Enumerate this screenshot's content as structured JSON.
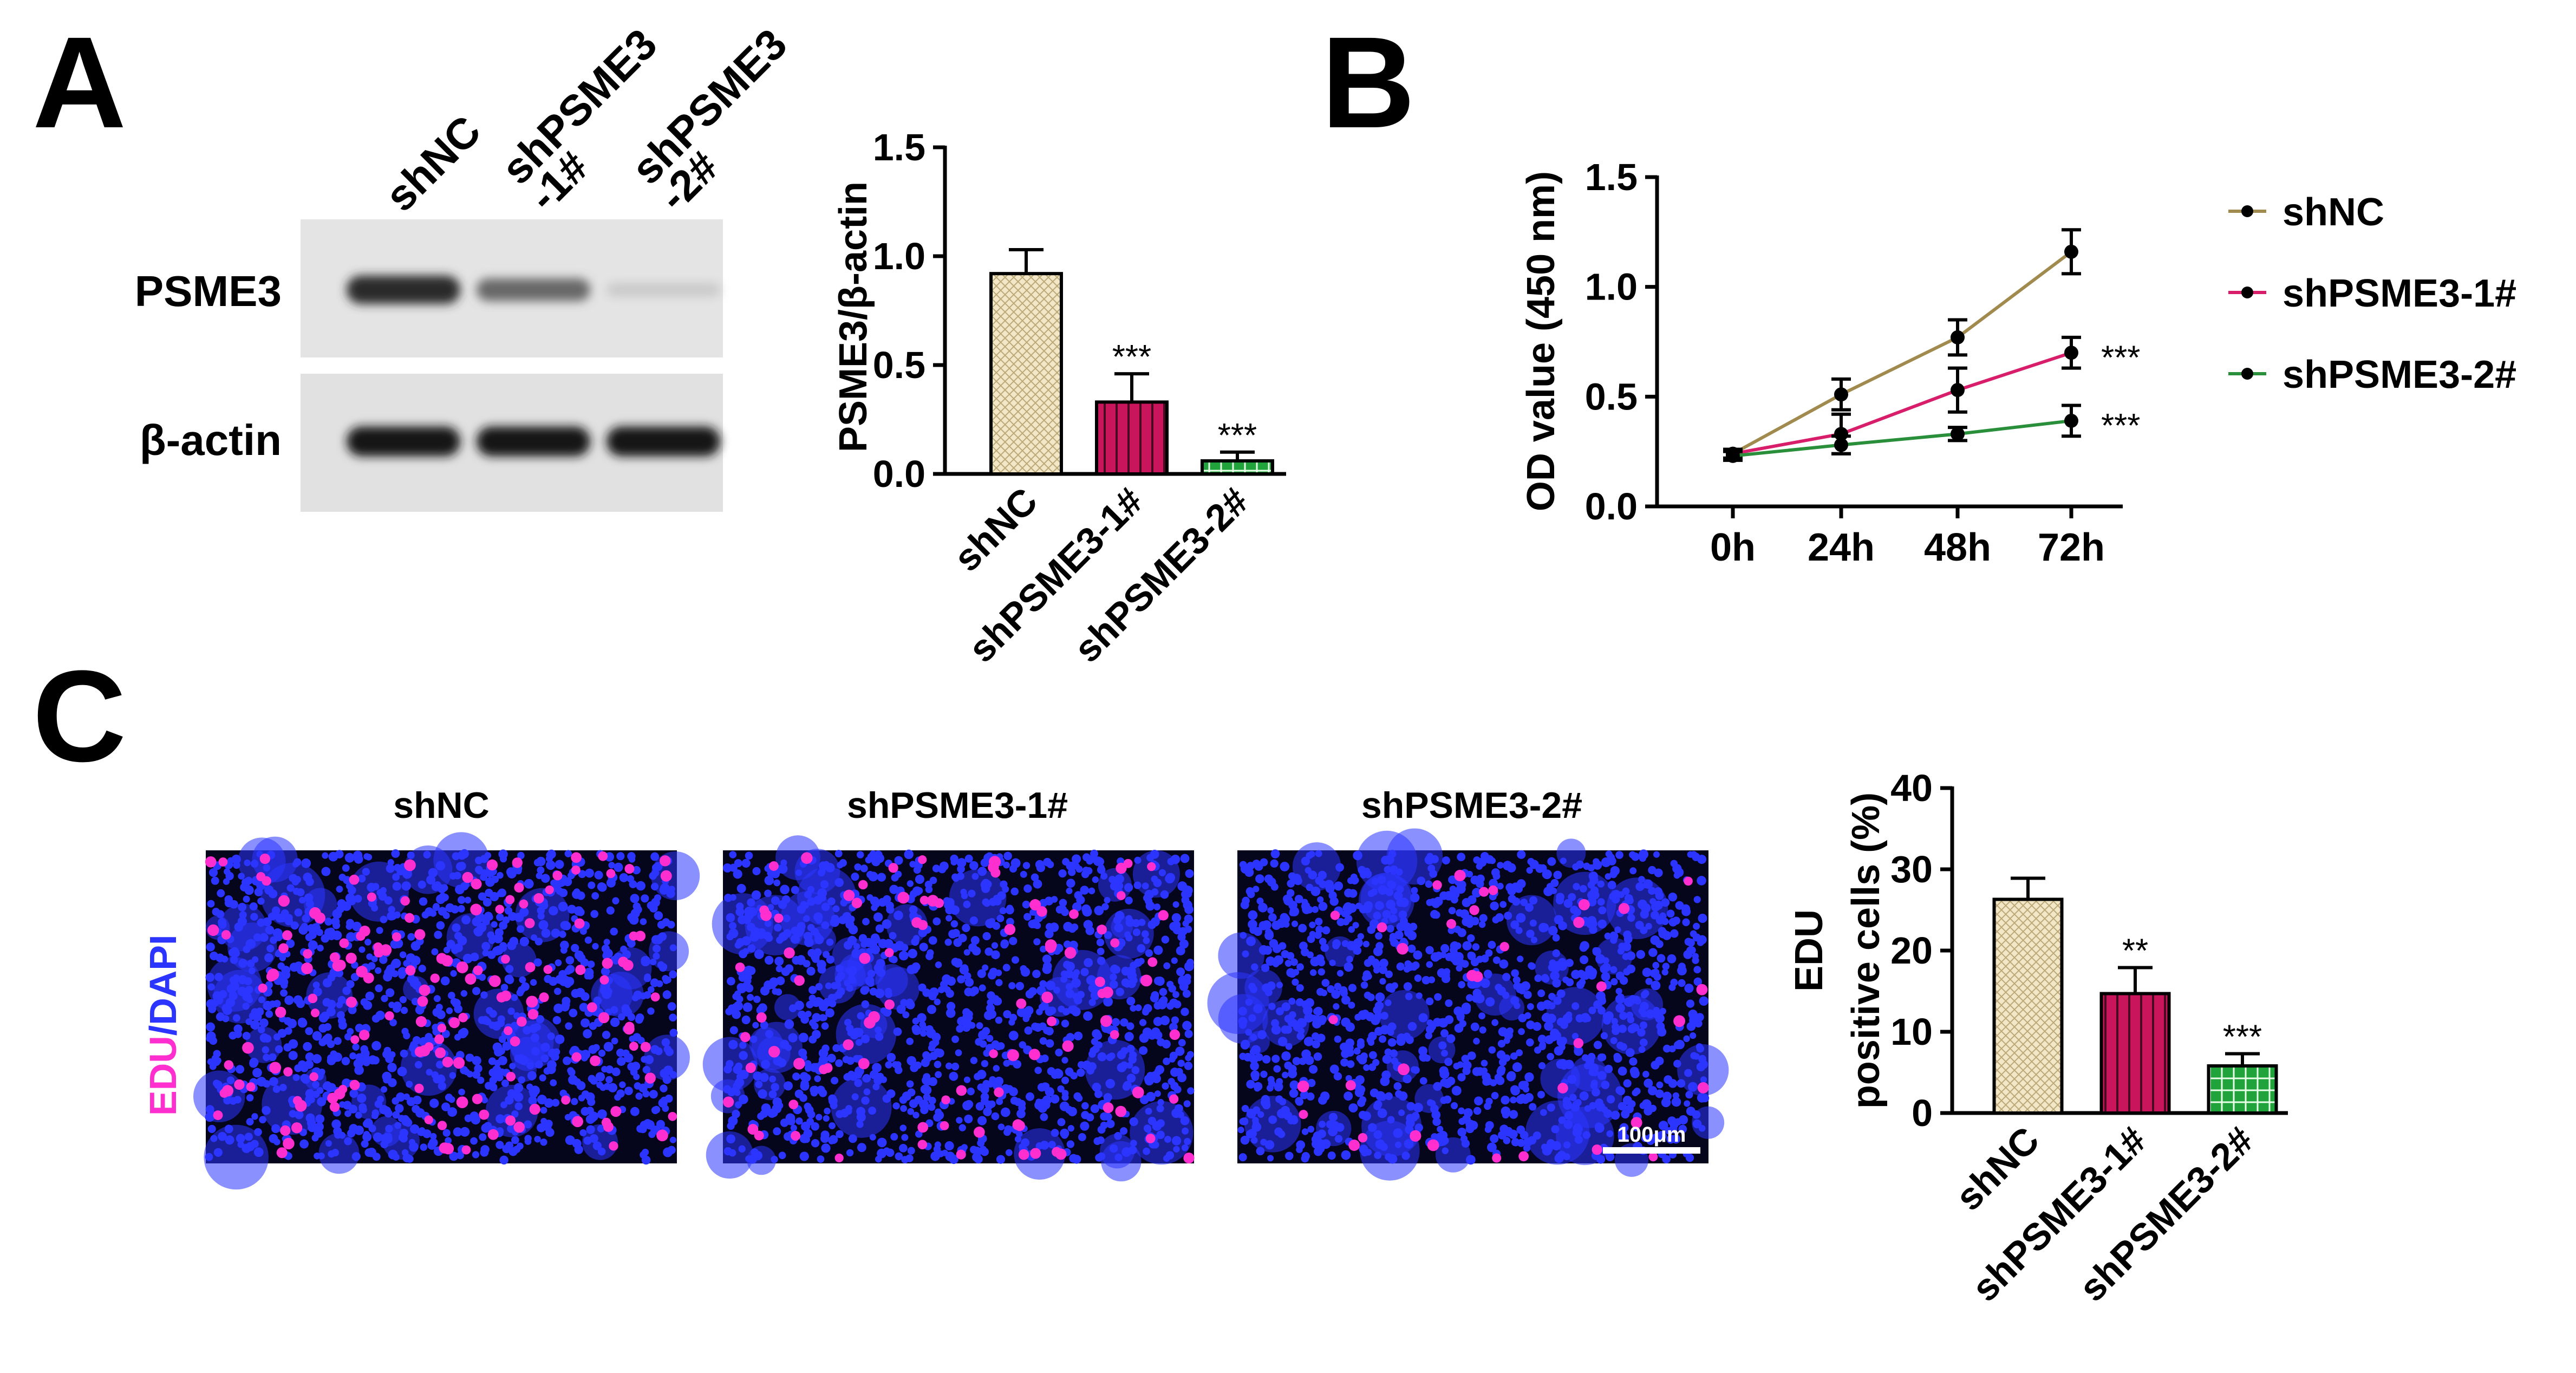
{
  "colors": {
    "shNC": "#f2e6c4",
    "shPSME3_1": "#c8155c",
    "shPSME3_2": "#1fa33a",
    "line_shNC": "#a08a4e",
    "line_shPSME3_1": "#d81e6a",
    "line_shPSME3_2": "#2a8f3a",
    "edu": "#ff2fcf",
    "dapi": "#2b35ff",
    "black": "#000000"
  },
  "panel_labels": {
    "A": "A",
    "B": "B",
    "C": "C"
  },
  "western": {
    "lane_labels": [
      {
        "line1": "shNC",
        "line2": ""
      },
      {
        "line1": "shPSME3",
        "line2": "-1#"
      },
      {
        "line1": "shPSME3",
        "line2": "-2#"
      }
    ],
    "row_labels": [
      "PSME3",
      "β-actin"
    ],
    "band_intensity": {
      "PSME3": [
        0.92,
        0.62,
        0.14
      ],
      "β-actin": [
        1.0,
        1.0,
        1.0
      ]
    }
  },
  "microscopy": {
    "titles": [
      "shNC",
      "shPSME3-1#",
      "shPSME3-2#"
    ],
    "side_label_edu": "EDU",
    "side_label_sep": "/",
    "side_label_dapi": "DAPI",
    "scale_bar": "100μm",
    "edu_positive_fraction": [
      0.26,
      0.15,
      0.06
    ]
  },
  "chart_data": [
    {
      "type": "bar",
      "panel": "A",
      "categories": [
        "shNC",
        "shPSME3-1#",
        "shPSME3-2#"
      ],
      "values": [
        0.92,
        0.33,
        0.06
      ],
      "errors": [
        0.11,
        0.13,
        0.04
      ],
      "significance": [
        "",
        "***",
        "***"
      ],
      "title": "",
      "xlabel": "",
      "ylabel": "PSME3/β-actin",
      "ylim": [
        0,
        1.5
      ],
      "yticks": [
        "0.0",
        "0.5",
        "1.0",
        "1.5"
      ],
      "ytick_values": [
        0,
        0.5,
        1.0,
        1.5
      ],
      "grid": false
    },
    {
      "type": "line",
      "panel": "B",
      "x": [
        "0h",
        "24h",
        "48h",
        "72h"
      ],
      "series": [
        {
          "name": "shNC",
          "values": [
            0.24,
            0.51,
            0.77,
            1.16
          ],
          "errors": [
            0.02,
            0.07,
            0.08,
            0.1
          ],
          "significance": ""
        },
        {
          "name": "shPSME3-1#",
          "values": [
            0.24,
            0.33,
            0.53,
            0.7
          ],
          "errors": [
            0.02,
            0.09,
            0.1,
            0.07
          ],
          "significance": "***"
        },
        {
          "name": "shPSME3-2#",
          "values": [
            0.23,
            0.28,
            0.33,
            0.39
          ],
          "errors": [
            0.02,
            0.04,
            0.03,
            0.07
          ],
          "significance": "***"
        }
      ],
      "title": "",
      "xlabel": "",
      "ylabel": "OD value (450 nm)",
      "ylim": [
        0,
        1.5
      ],
      "yticks": [
        "0.0",
        "0.5",
        "1.0",
        "1.5"
      ],
      "ytick_values": [
        0,
        0.5,
        1.0,
        1.5
      ],
      "legend": "right",
      "grid": false
    },
    {
      "type": "bar",
      "panel": "C",
      "categories": [
        "shNC",
        "shPSME3-1#",
        "shPSME3-2#"
      ],
      "values": [
        26.3,
        14.7,
        5.8
      ],
      "errors": [
        2.6,
        3.2,
        1.5
      ],
      "significance": [
        "",
        "**",
        "***"
      ],
      "title": "",
      "xlabel": "",
      "ylabel_line1": "EDU",
      "ylabel_line2": "positive cells (%)",
      "ylim": [
        0,
        40
      ],
      "yticks": [
        "0",
        "10",
        "20",
        "30",
        "40"
      ],
      "ytick_values": [
        0,
        10,
        20,
        30,
        40
      ],
      "grid": false
    }
  ]
}
